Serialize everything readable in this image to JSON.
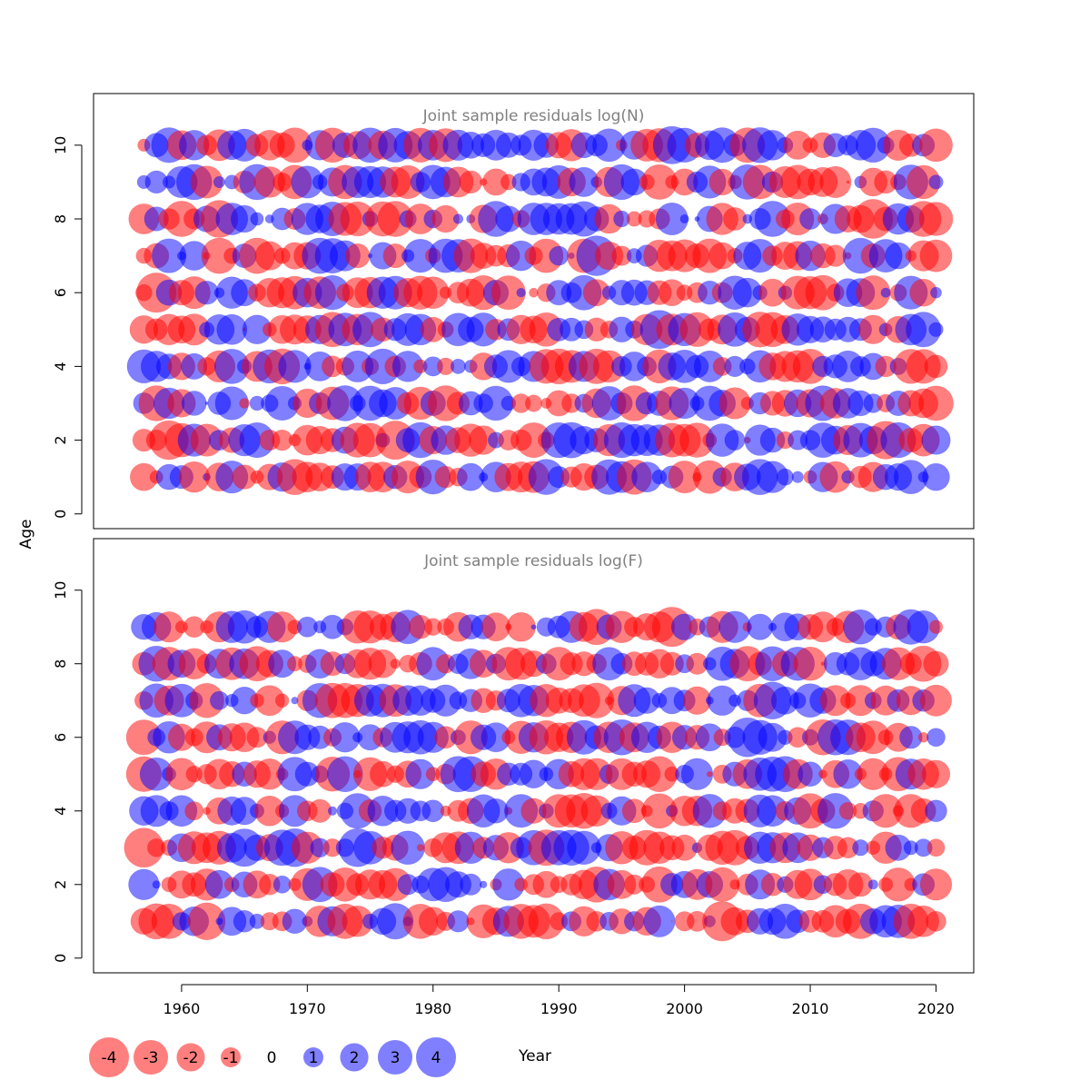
{
  "chart_data": {
    "type": "scatter",
    "subtype": "bubble",
    "xlabel": "Year",
    "ylabel": "Age",
    "xlim": [
      1953,
      2023
    ],
    "years": [
      1957,
      2020
    ],
    "x_ticks": [
      1960,
      1970,
      1980,
      1990,
      2000,
      2010,
      2020
    ],
    "y_ticks": [
      0,
      2,
      4,
      6,
      8,
      10
    ],
    "colors": {
      "positive": "#0000FF",
      "negative": "#FF0000",
      "opacity": 0.5
    },
    "panels": [
      {
        "title": "Joint sample residuals log(N)",
        "ylim": [
          -0.4,
          11.4
        ],
        "ages": [
          1,
          2,
          3,
          4,
          5,
          6,
          7,
          8,
          9,
          10
        ],
        "seed": 17
      },
      {
        "title": "Joint sample residuals log(F)",
        "ylim": [
          -0.4,
          11.4
        ],
        "ages": [
          1,
          2,
          3,
          4,
          5,
          6,
          7,
          8,
          9
        ],
        "seed": 91
      }
    ],
    "legend": {
      "items": [
        {
          "label": "-4",
          "value": -4
        },
        {
          "label": "-3",
          "value": -3
        },
        {
          "label": "-2",
          "value": -2
        },
        {
          "label": "-1",
          "value": -1
        },
        {
          "label": "0",
          "value": 0
        },
        {
          "label": "1",
          "value": 1
        },
        {
          "label": "2",
          "value": 2
        },
        {
          "label": "3",
          "value": 3
        },
        {
          "label": "4",
          "value": 4
        }
      ]
    }
  }
}
